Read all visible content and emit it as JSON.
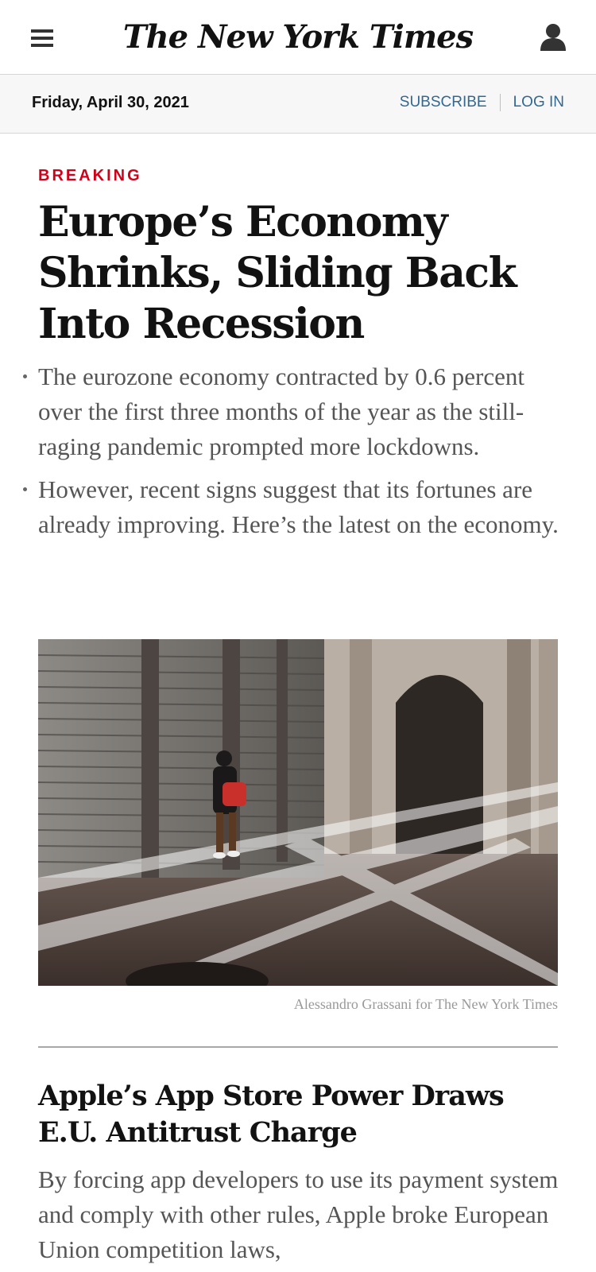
{
  "masthead": {
    "logo_text": "The New York Times",
    "menu_icon": "hamburger-menu-icon",
    "account_icon": "user-account-icon"
  },
  "datebar": {
    "date": "Friday, April 30, 2021",
    "subscribe_label": "SUBSCRIBE",
    "login_label": "LOG IN"
  },
  "lead_story": {
    "kicker": "BREAKING",
    "headline": "Europe’s Economy Shrinks, Sliding Back Into Recession",
    "bullets": [
      "The eurozone economy contracted by 0.6 percent over the first three months of the year as the still-raging pandemic prompted more lockdowns.",
      "However, recent signs suggest that its fortunes are already improving. Here’s the latest on the economy."
    ],
    "photo_credit": "Alessandro Grassani for The New York Times"
  },
  "second_story": {
    "headline": "Apple’s App Store Power Draws E.U. Antitrust Charge",
    "summary": "By forcing app developers to use its payment system and comply with other rules, Apple broke European Union competition laws,"
  },
  "colors": {
    "kicker_red": "#d0021b",
    "link_blue": "#326891",
    "body_gray": "#555555"
  }
}
